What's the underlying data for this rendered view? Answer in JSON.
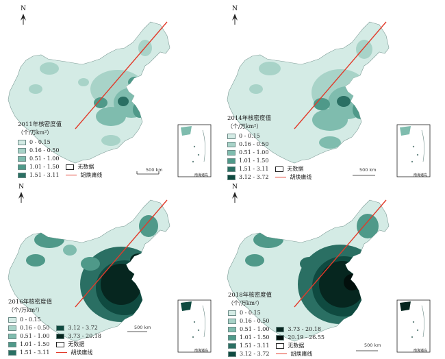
{
  "maps": [
    {
      "id": "2011",
      "title": "2011年核密度值",
      "unit": "（个/万km²）",
      "legend": [
        {
          "label": "0 - 0.15",
          "color": "#d4ebe5"
        },
        {
          "label": "0.16 - 0.50",
          "color": "#a8d3c8"
        },
        {
          "label": "0.51 - 1.00",
          "color": "#7fbcae"
        },
        {
          "label": "1.01 - 1.50",
          "color": "#4f9989"
        },
        {
          "label": "1.51 - 3.11",
          "color": "#2a6f63"
        },
        {
          "label": "无数据",
          "color": "#ffffff"
        },
        {
          "label": "胡焕庸线",
          "color": "line"
        }
      ],
      "scale": "500 km",
      "inset_label": "南海诸岛"
    },
    {
      "id": "2014",
      "title": "2014年核密度值",
      "unit": "（个/万km²）",
      "legend": [
        {
          "label": "0 - 0.15",
          "color": "#d4ebe5"
        },
        {
          "label": "0.16 - 0.50",
          "color": "#a8d3c8"
        },
        {
          "label": "0.51 - 1.00",
          "color": "#7fbcae"
        },
        {
          "label": "1.01 - 1.50",
          "color": "#4f9989"
        },
        {
          "label": "1.51 - 3.11",
          "color": "#2a6f63"
        },
        {
          "label": "3.12 - 3.72",
          "color": "#0f4a40"
        },
        {
          "label": "无数据",
          "color": "#ffffff"
        },
        {
          "label": "胡焕庸线",
          "color": "line"
        }
      ],
      "scale": "500 km",
      "inset_label": "南海诸岛"
    },
    {
      "id": "2016",
      "title": "2016年核密度值",
      "unit": "（个/万km²）",
      "legend": [
        {
          "label": "0 - 0.15",
          "color": "#d4ebe5"
        },
        {
          "label": "0.16 - 0.50",
          "color": "#a8d3c8"
        },
        {
          "label": "0.51 - 1.00",
          "color": "#7fbcae"
        },
        {
          "label": "1.01 - 1.50",
          "color": "#4f9989"
        },
        {
          "label": "1.51 - 3.11",
          "color": "#2a6f63"
        },
        {
          "label": "3.12 - 3.72",
          "color": "#0f4a40"
        },
        {
          "label": "3.73 - 20.18",
          "color": "#06261f"
        },
        {
          "label": "无数据",
          "color": "#ffffff"
        },
        {
          "label": "胡焕庸线",
          "color": "line"
        }
      ],
      "scale": "500 km",
      "inset_label": "南海诸岛"
    },
    {
      "id": "2018",
      "title": "2018年核密度值",
      "unit": "（个/万km²）",
      "legend": [
        {
          "label": "0 - 0.15",
          "color": "#d4ebe5"
        },
        {
          "label": "0.16 - 0.50",
          "color": "#a8d3c8"
        },
        {
          "label": "0.51 - 1.00",
          "color": "#7fbcae"
        },
        {
          "label": "1.01 - 1.50",
          "color": "#4f9989"
        },
        {
          "label": "1.51 - 3.11",
          "color": "#2a6f63"
        },
        {
          "label": "3.12 - 3.72",
          "color": "#0f4a40"
        },
        {
          "label": "3.73 - 20.18",
          "color": "#06261f"
        },
        {
          "label": "20.19 - 26.55",
          "color": "#020f0c"
        },
        {
          "label": "无数据",
          "color": "#ffffff"
        },
        {
          "label": "胡焕庸线",
          "color": "line"
        }
      ],
      "scale": "500 km",
      "inset_label": "南海诸岛"
    }
  ],
  "north_label": "N"
}
